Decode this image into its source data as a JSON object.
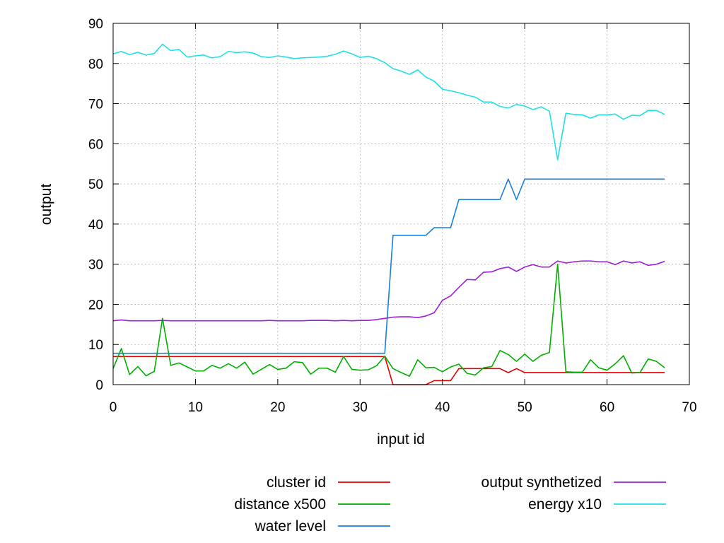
{
  "chart_data": {
    "type": "line",
    "title": "",
    "xlabel": "input id",
    "ylabel": "output",
    "xlim": [
      0,
      70
    ],
    "ylim": [
      0,
      90
    ],
    "xticks": [
      0,
      10,
      20,
      30,
      40,
      50,
      60,
      70
    ],
    "yticks": [
      0,
      10,
      20,
      30,
      40,
      50,
      60,
      70,
      80,
      90
    ],
    "grid": true,
    "legend_position": "bottom",
    "x": [
      0,
      1,
      2,
      3,
      4,
      5,
      6,
      7,
      8,
      9,
      10,
      11,
      12,
      13,
      14,
      15,
      16,
      17,
      18,
      19,
      20,
      21,
      22,
      23,
      24,
      25,
      26,
      27,
      28,
      29,
      30,
      31,
      32,
      33,
      34,
      35,
      36,
      37,
      38,
      39,
      40,
      41,
      42,
      43,
      44,
      45,
      46,
      47,
      48,
      49,
      50,
      51,
      52,
      53,
      54,
      55,
      56,
      57,
      58,
      59,
      60,
      61,
      62,
      63,
      64,
      65,
      66,
      67
    ],
    "series": [
      {
        "name": "cluster id",
        "color": "#e00000",
        "values": [
          7,
          7,
          7,
          7,
          7,
          7,
          7,
          7,
          7,
          7,
          7,
          7,
          7,
          7,
          7,
          7,
          7,
          7,
          7,
          7,
          7,
          7,
          7,
          7,
          7,
          7,
          7,
          7,
          7,
          7,
          7,
          7,
          7,
          7,
          0,
          0,
          0,
          0,
          0,
          1,
          1,
          1,
          4,
          4,
          4,
          4,
          4,
          4,
          3,
          4,
          3,
          3,
          3,
          3,
          3,
          3,
          3,
          3,
          3,
          3,
          3,
          3,
          3,
          3,
          3,
          3,
          3,
          3
        ]
      },
      {
        "name": "distance x500",
        "color": "#00b000",
        "values": [
          4,
          9,
          2.5,
          4.5,
          2.2,
          3.3,
          16.5,
          4.8,
          5.4,
          4.4,
          3.4,
          3.4,
          4.8,
          4.1,
          5.2,
          4.1,
          5.6,
          2.6,
          3.8,
          5,
          3.8,
          4.1,
          5.7,
          5.5,
          2.6,
          4.1,
          4.1,
          3.1,
          7,
          3.8,
          3.6,
          3.7,
          4.7,
          7.1,
          4,
          3,
          2.1,
          6.2,
          4.2,
          4.3,
          3.2,
          4.4,
          5.1,
          2.8,
          2.4,
          4.2,
          4.5,
          8.5,
          7.5,
          5.8,
          7.6,
          5.8,
          7.3,
          8,
          30,
          3.2,
          3.1,
          3.1,
          6.2,
          4.2,
          3.6,
          5.2,
          7.2,
          2.9,
          3,
          6.4,
          5.8,
          4.2
        ]
      },
      {
        "name": "water level",
        "color": "#1a7fd9",
        "values": [
          7.8,
          7.8,
          7.8,
          7.8,
          7.8,
          7.8,
          7.8,
          7.8,
          7.8,
          7.8,
          7.8,
          7.8,
          7.8,
          7.8,
          7.8,
          7.8,
          7.8,
          7.8,
          7.8,
          7.8,
          7.8,
          7.8,
          7.8,
          7.8,
          7.8,
          7.8,
          7.8,
          7.8,
          7.8,
          7.8,
          7.8,
          7.8,
          7.8,
          7.8,
          37.2,
          37.2,
          37.2,
          37.2,
          37.2,
          39.1,
          39.1,
          39.1,
          46.1,
          46.1,
          46.1,
          46.1,
          46.1,
          46.1,
          51.2,
          46.1,
          51.2,
          51.2,
          51.2,
          51.2,
          51.2,
          51.2,
          51.2,
          51.2,
          51.2,
          51.2,
          51.2,
          51.2,
          51.2,
          51.2,
          51.2,
          51.2,
          51.2,
          51.2
        ]
      },
      {
        "name": "output synthetized",
        "color": "#9b1ed9",
        "values": [
          15.9,
          16.1,
          15.9,
          15.9,
          15.9,
          15.9,
          16,
          15.9,
          15.9,
          15.9,
          15.9,
          15.9,
          15.9,
          15.9,
          15.9,
          15.9,
          15.9,
          15.9,
          15.9,
          16,
          15.9,
          15.9,
          15.9,
          15.9,
          16,
          16,
          16,
          15.9,
          16,
          15.9,
          16,
          16,
          16.2,
          16.5,
          16.8,
          16.9,
          16.9,
          16.7,
          17.1,
          17.9,
          21,
          22.1,
          24.2,
          26.2,
          26.1,
          28,
          28.1,
          28.9,
          29.3,
          28.2,
          29.3,
          29.9,
          29.3,
          29.3,
          30.8,
          30.3,
          30.6,
          30.8,
          30.8,
          30.6,
          30.6,
          29.9,
          30.8,
          30.3,
          30.6,
          29.7,
          30,
          30.7
        ]
      },
      {
        "name": "energy x10",
        "color": "#1ee0e6",
        "values": [
          82.4,
          83,
          82.2,
          82.8,
          82.1,
          82.5,
          84.8,
          83.2,
          83.5,
          81.6,
          81.9,
          82.1,
          81.4,
          81.7,
          83,
          82.7,
          82.9,
          82.6,
          81.7,
          81.5,
          81.9,
          81.6,
          81.2,
          81.4,
          81.5,
          81.6,
          81.8,
          82.3,
          83.1,
          82.4,
          81.5,
          81.8,
          81.2,
          80.2,
          78.7,
          78.1,
          77.3,
          78.4,
          76.6,
          75.6,
          73.6,
          73.2,
          72.7,
          72.1,
          71.6,
          70.4,
          70.4,
          69.3,
          68.9,
          69.8,
          69.4,
          68.5,
          69.2,
          68.1,
          56,
          67.6,
          67.3,
          67.2,
          66.4,
          67.2,
          67.2,
          67.4,
          66.1,
          67.1,
          67,
          68.3,
          68.3,
          67.3
        ]
      }
    ]
  }
}
